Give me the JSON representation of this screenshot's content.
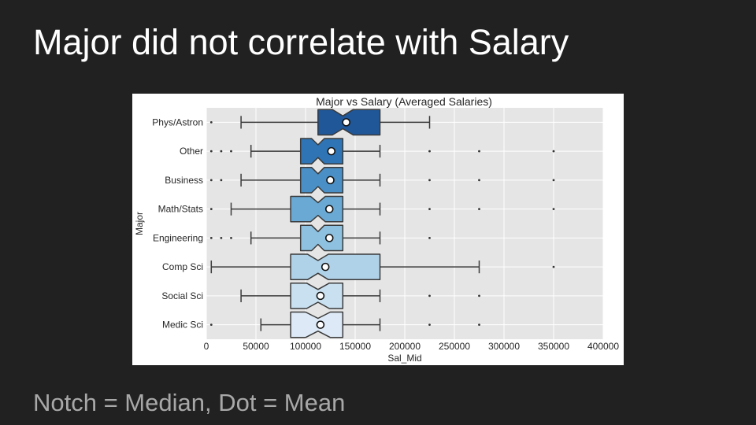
{
  "slide": {
    "title": "Major did not correlate with Salary",
    "caption": "Notch = Median, Dot = Mean"
  },
  "colors": {
    "background": "#212121",
    "plot_bg": "#e5e5e5",
    "grid": "#ffffff",
    "box_palette": [
      "#1f5799",
      "#2f74b4",
      "#4a90c6",
      "#6aa9d3",
      "#8ec1e0",
      "#b0d2e8",
      "#c9e0f0",
      "#dde9f6"
    ]
  },
  "chart_data": {
    "type": "boxplot",
    "orientation": "horizontal",
    "notched": true,
    "title": "Major vs Salary (Averaged Salaries)",
    "xlabel": "Sal_Mid",
    "ylabel": "Major",
    "xlim": [
      0,
      400000
    ],
    "xticks": [
      0,
      50000,
      100000,
      150000,
      200000,
      250000,
      300000,
      350000,
      400000
    ],
    "xtick_labels": [
      "0",
      "50000",
      "100000",
      "150000",
      "200000",
      "250000",
      "300000",
      "350000",
      "400000"
    ],
    "grid": true,
    "categories": [
      "Phys/Astron",
      "Other",
      "Business",
      "Math/Stats",
      "Engineering",
      "Comp Sci",
      "Social Sci",
      "Medic Sci"
    ],
    "boxes": [
      {
        "category": "Phys/Astron",
        "whisker_low": 35000,
        "q1": 112500,
        "median": 137500,
        "q3": 175000,
        "whisker_high": 225000,
        "mean": 141000,
        "notch_low": 127000,
        "notch_high": 148000,
        "outliers": [
          5000
        ]
      },
      {
        "category": "Other",
        "whisker_low": 45000,
        "q1": 95000,
        "median": 112500,
        "q3": 137500,
        "whisker_high": 175000,
        "mean": 126000,
        "notch_low": 106000,
        "notch_high": 119000,
        "outliers": [
          5000,
          15000,
          25000,
          225000,
          275000,
          350000
        ]
      },
      {
        "category": "Business",
        "whisker_low": 35000,
        "q1": 95000,
        "median": 112500,
        "q3": 137500,
        "whisker_high": 175000,
        "mean": 125000,
        "notch_low": 106000,
        "notch_high": 119000,
        "outliers": [
          5000,
          15000,
          225000,
          275000,
          350000
        ]
      },
      {
        "category": "Math/Stats",
        "whisker_low": 25000,
        "q1": 85000,
        "median": 112500,
        "q3": 137500,
        "whisker_high": 175000,
        "mean": 124000,
        "notch_low": 105000,
        "notch_high": 120000,
        "outliers": [
          5000,
          225000,
          275000,
          350000
        ]
      },
      {
        "category": "Engineering",
        "whisker_low": 45000,
        "q1": 95000,
        "median": 112500,
        "q3": 137500,
        "whisker_high": 175000,
        "mean": 124000,
        "notch_low": 106000,
        "notch_high": 119000,
        "outliers": [
          5000,
          15000,
          25000,
          225000
        ]
      },
      {
        "category": "Comp Sci",
        "whisker_low": 5000,
        "q1": 85000,
        "median": 112500,
        "q3": 175000,
        "whisker_high": 275000,
        "mean": 120000,
        "notch_low": 102000,
        "notch_high": 123000,
        "outliers": [
          350000
        ]
      },
      {
        "category": "Social Sci",
        "whisker_low": 35000,
        "q1": 85000,
        "median": 112500,
        "q3": 137500,
        "whisker_high": 175000,
        "mean": 115000,
        "notch_low": 101000,
        "notch_high": 124000,
        "outliers": [
          225000,
          275000
        ]
      },
      {
        "category": "Medic Sci",
        "whisker_low": 55000,
        "q1": 85000,
        "median": 112500,
        "q3": 137500,
        "whisker_high": 175000,
        "mean": 115000,
        "notch_low": 100000,
        "notch_high": 125000,
        "outliers": [
          5000,
          225000,
          275000
        ]
      }
    ]
  }
}
